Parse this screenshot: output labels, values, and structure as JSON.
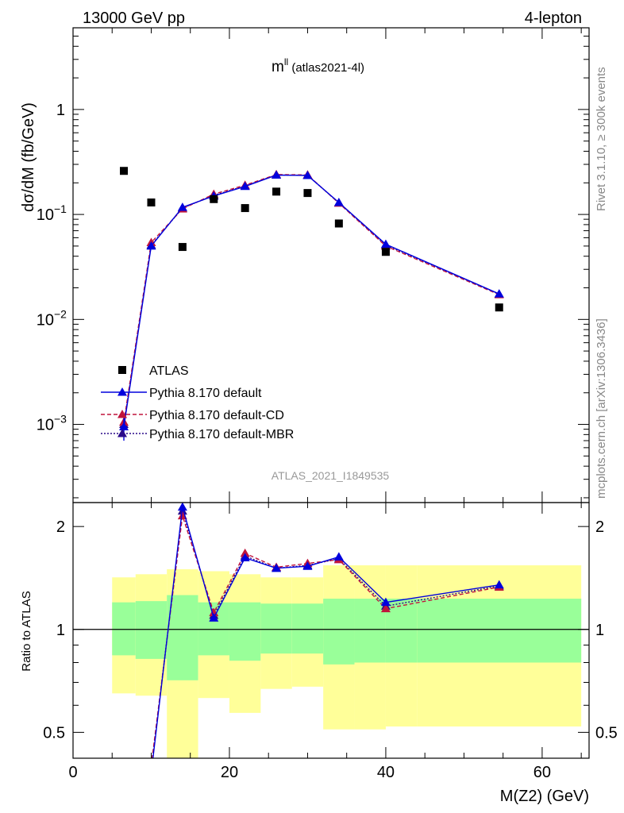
{
  "header": {
    "left": "13000 GeV pp",
    "right": "4-lepton"
  },
  "plot_title": {
    "main": "m",
    "sup": "ll",
    "sub": " (atlas2021-4l)"
  },
  "side_text": {
    "rivet": "Rivet 3.1.10, ≥ 300k events",
    "mcplots": "mcplots.cern.ch [arXiv:1306.3436]"
  },
  "watermark": "ATLAS_2021_I1849535",
  "colors": {
    "data": "#000000",
    "default": "#0000dd",
    "cd": "#c0143c",
    "mbr": "#2a0a8a",
    "band_outer": "#ffff99",
    "band_inner": "#99ff99"
  },
  "chart_data": [
    {
      "type": "scatter",
      "panel": "main",
      "ylabel": "dσ/dM (fb/GeV)",
      "yscale": "log",
      "ylim": [
        0.00018,
        6
      ],
      "xlim": [
        0,
        66
      ],
      "yticks": [
        {
          "value": 1,
          "label": "1"
        },
        {
          "value": 0.1,
          "base": "10",
          "exp": "−1"
        },
        {
          "value": 0.01,
          "base": "10",
          "exp": "−2"
        },
        {
          "value": 0.001,
          "base": "10",
          "exp": "−3"
        }
      ],
      "legend_position": "bottom-left",
      "series": [
        {
          "name": "ATLAS",
          "style": "data",
          "x": [
            6.5,
            10,
            14,
            18,
            22,
            26,
            30,
            34,
            40,
            54.5
          ],
          "y": [
            0.26,
            0.13,
            0.049,
            0.14,
            0.115,
            0.165,
            0.16,
            0.082,
            0.044,
            0.013
          ]
        },
        {
          "name": "Pythia 8.170 default",
          "style": "default",
          "x": [
            6.5,
            10,
            14,
            18,
            22,
            26,
            30,
            34,
            40,
            54.5
          ],
          "y": [
            0.00095,
            0.05,
            0.117,
            0.15,
            0.185,
            0.237,
            0.235,
            0.13,
            0.052,
            0.0175
          ],
          "yerr_low": [
            0.00025,
            0,
            0,
            0,
            0,
            0,
            0,
            0,
            0,
            0
          ],
          "yerr_high": [
            0.0002,
            0,
            0,
            0,
            0,
            0,
            0,
            0,
            0,
            0
          ]
        },
        {
          "name": "Pythia 8.170 default-CD",
          "style": "cd",
          "x": [
            6.5,
            10,
            14,
            18,
            22,
            26,
            30,
            34,
            40,
            54.5
          ],
          "y": [
            0.00105,
            0.054,
            0.113,
            0.156,
            0.19,
            0.24,
            0.238,
            0.128,
            0.05,
            0.0172
          ]
        },
        {
          "name": "Pythia 8.170 default-MBR",
          "style": "mbr",
          "x": [
            6.5,
            10,
            14,
            18,
            22,
            26,
            30,
            34,
            40,
            54.5
          ],
          "y": [
            0.001,
            0.051,
            0.115,
            0.152,
            0.187,
            0.238,
            0.236,
            0.129,
            0.051,
            0.0174
          ]
        }
      ]
    },
    {
      "type": "line",
      "panel": "ratio",
      "ylabel": "Ratio to ATLAS",
      "xlabel": "M(Z2) (GeV)",
      "yscale": "log",
      "ylim": [
        0.42,
        2.35
      ],
      "xlim": [
        0,
        66
      ],
      "xticks": [
        0,
        20,
        40,
        60
      ],
      "yticks": [
        0.5,
        1,
        2
      ],
      "bands": {
        "edges": [
          5,
          8,
          12,
          16,
          20,
          24,
          28,
          32,
          36,
          40,
          44,
          65
        ],
        "outer_low": [
          0.65,
          0.64,
          0.38,
          0.63,
          0.57,
          0.67,
          0.68,
          0.51,
          0.51,
          0.52,
          0.52
        ],
        "outer_high": [
          1.42,
          1.45,
          1.5,
          1.48,
          1.45,
          1.42,
          1.42,
          1.54,
          1.54,
          1.54,
          1.54
        ],
        "inner_low": [
          0.84,
          0.82,
          0.71,
          0.84,
          0.81,
          0.85,
          0.85,
          0.79,
          0.8,
          0.8,
          0.8
        ],
        "inner_high": [
          1.2,
          1.21,
          1.26,
          1.2,
          1.2,
          1.19,
          1.19,
          1.23,
          1.23,
          1.23,
          1.23
        ]
      },
      "series": [
        {
          "name": "Pythia 8.170 default",
          "style": "default",
          "x": [
            10,
            14,
            18,
            22,
            26,
            30,
            34,
            40,
            54.5
          ],
          "y": [
            0.38,
            2.28,
            1.08,
            1.62,
            1.51,
            1.53,
            1.63,
            1.2,
            1.35
          ]
        },
        {
          "name": "Pythia 8.170 default-CD",
          "style": "cd",
          "x": [
            10,
            14,
            18,
            22,
            26,
            30,
            34,
            40,
            54.5
          ],
          "y": [
            0.4,
            2.15,
            1.12,
            1.67,
            1.52,
            1.56,
            1.6,
            1.15,
            1.33
          ]
        },
        {
          "name": "Pythia 8.170 default-MBR",
          "style": "mbr",
          "x": [
            10,
            14,
            18,
            22,
            26,
            30,
            34,
            40,
            54.5
          ],
          "y": [
            0.39,
            2.22,
            1.1,
            1.64,
            1.51,
            1.54,
            1.61,
            1.17,
            1.34
          ]
        }
      ]
    }
  ]
}
